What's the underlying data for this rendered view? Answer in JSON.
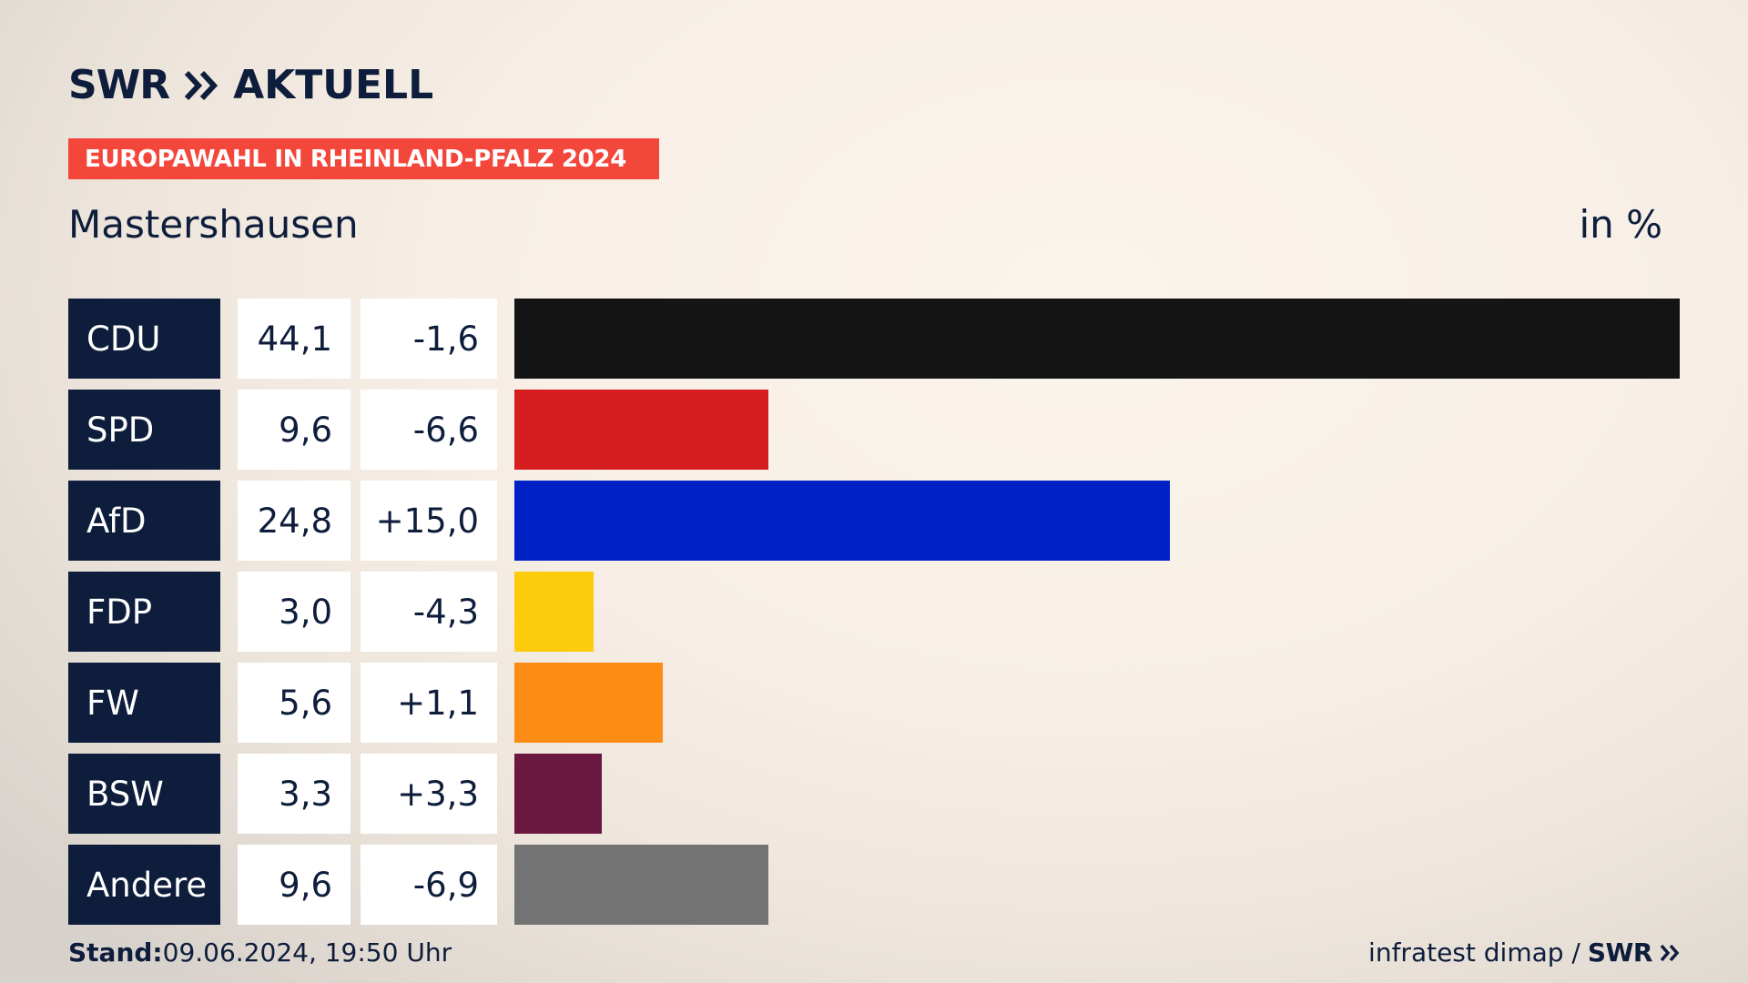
{
  "header": {
    "logo_brand": "SWR",
    "logo_product": "AKTUELL",
    "banner": "EUROPAWAHL IN RHEINLAND-PFALZ 2024",
    "place": "Mastershausen",
    "unit": "in %"
  },
  "footer": {
    "stand_label": "Stand:",
    "stand_value": "09.06.2024, 19:50 Uhr",
    "source": "infratest dimap /",
    "source_brand": "SWR"
  },
  "colors": {
    "navy": "#0d1d3b",
    "banner": "#f4473c"
  },
  "chart_data": {
    "type": "bar",
    "orientation": "horizontal",
    "categories": [
      "CDU",
      "SPD",
      "AfD",
      "FDP",
      "FW",
      "BSW",
      "Andere"
    ],
    "values": [
      44.1,
      9.6,
      24.8,
      3.0,
      5.6,
      3.3,
      9.6
    ],
    "value_labels": [
      "44,1",
      "9,6",
      "24,8",
      "3,0",
      "5,6",
      "3,3",
      "9,6"
    ],
    "diff_labels": [
      "-1,6",
      "-6,6",
      "+15,0",
      "-4,3",
      "+1,1",
      "+3,3",
      "-6,9"
    ],
    "diffs": [
      -1.6,
      -6.6,
      15.0,
      -4.3,
      1.1,
      3.3,
      -6.9
    ],
    "colors": [
      "#141414",
      "#d61e20",
      "#0021c5",
      "#fccb0c",
      "#fd8c16",
      "#6a1840",
      "#737373"
    ],
    "xlim": [
      0,
      44.1
    ],
    "grid": false,
    "legend": "none"
  }
}
